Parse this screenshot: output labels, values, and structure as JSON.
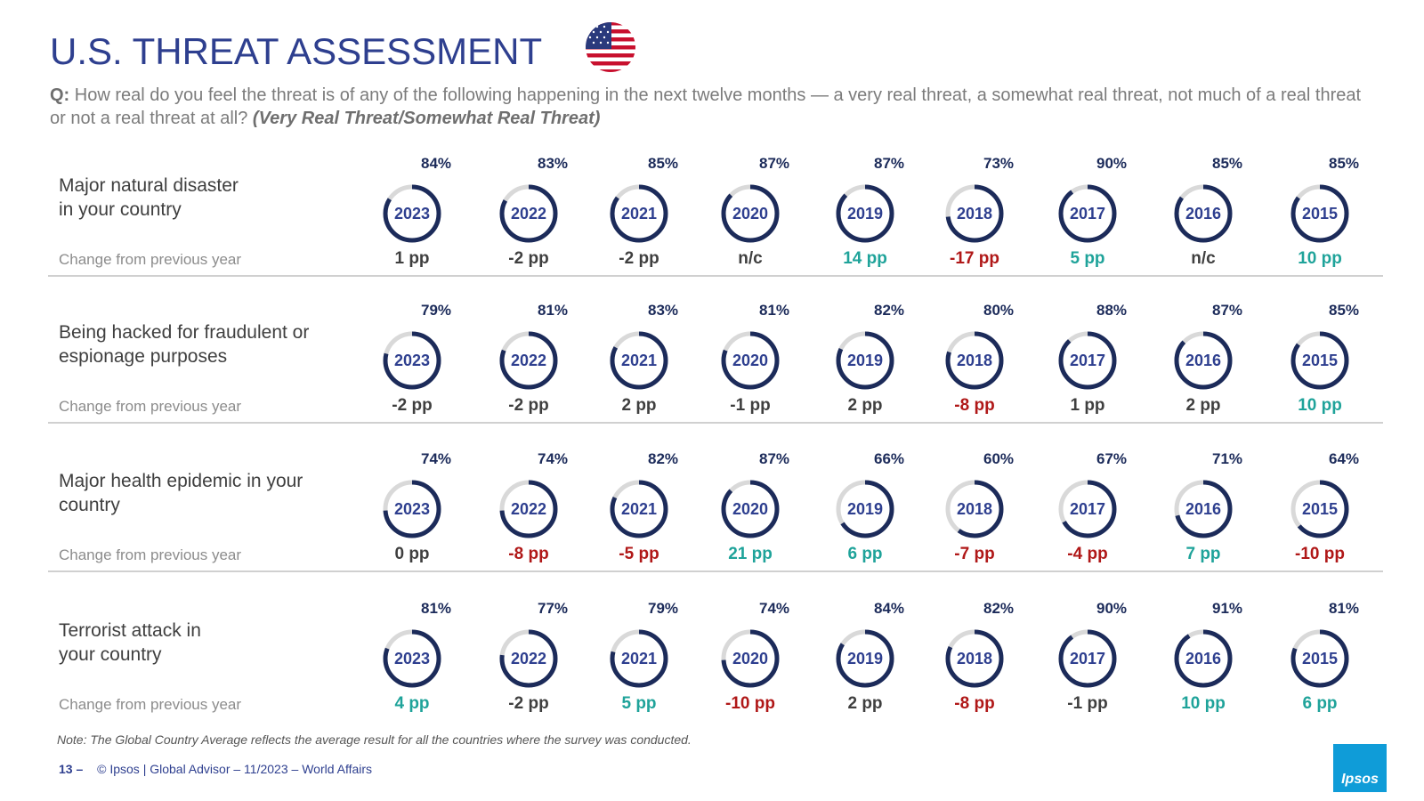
{
  "title": "U.S. THREAT ASSESSMENT",
  "flag_icon": "us-flag-icon",
  "question": {
    "label": "Q:",
    "text": "How real do you feel the threat is of any of the following happening in the next twelve months — a very real threat, a somewhat real threat, not much of a real threat or not a real threat at all?",
    "note": "(Very Real Threat/Somewhat Real Threat)"
  },
  "change_label": "Change from previous year",
  "colors": {
    "title": "#2e3f8f",
    "ring": "#1c2b5a",
    "ring_track": "#d9d9d9",
    "positive": "#1fa39a",
    "negative": "#b01818",
    "neutral": "#3f3f3f"
  },
  "chart_data": {
    "type": "donut-grid",
    "title": "U.S. THREAT ASSESSMENT",
    "years": [
      "2023",
      "2022",
      "2021",
      "2020",
      "2019",
      "2018",
      "2017",
      "2016",
      "2015"
    ],
    "series": [
      {
        "name": "Major natural disaster in your country",
        "label_lines": [
          "Major natural disaster",
          "in your country"
        ],
        "values": [
          84,
          83,
          85,
          87,
          87,
          73,
          90,
          85,
          85
        ],
        "changes": [
          "1 pp",
          "-2 pp",
          "-2 pp",
          "n/c",
          "14 pp",
          "-17 pp",
          "5 pp",
          "n/c",
          "10 pp"
        ],
        "change_tone": [
          "neu",
          "neu",
          "neu",
          "neu",
          "pos",
          "neg",
          "pos",
          "neu",
          "pos"
        ]
      },
      {
        "name": "Being hacked for fraudulent or espionage purposes",
        "label_lines": [
          "Being hacked for fraudulent or",
          "espionage purposes"
        ],
        "values": [
          79,
          81,
          83,
          81,
          82,
          80,
          88,
          87,
          85
        ],
        "changes": [
          "-2 pp",
          "-2 pp",
          "2 pp",
          "-1 pp",
          "2 pp",
          "-8 pp",
          "1 pp",
          "2 pp",
          "10 pp"
        ],
        "change_tone": [
          "neu",
          "neu",
          "neu",
          "neu",
          "neu",
          "neg",
          "neu",
          "neu",
          "pos"
        ]
      },
      {
        "name": "Major health epidemic in your country",
        "label_lines": [
          "Major health epidemic in your",
          "country"
        ],
        "values": [
          74,
          74,
          82,
          87,
          66,
          60,
          67,
          71,
          64
        ],
        "changes": [
          "0 pp",
          "-8 pp",
          "-5 pp",
          "21 pp",
          "6 pp",
          "-7 pp",
          "-4 pp",
          "7 pp",
          "-10 pp"
        ],
        "change_tone": [
          "neu",
          "neg",
          "neg",
          "pos",
          "pos",
          "neg",
          "neg",
          "pos",
          "neg"
        ]
      },
      {
        "name": "Terrorist attack in your country",
        "label_lines": [
          "Terrorist attack in",
          "your country"
        ],
        "values": [
          81,
          77,
          79,
          74,
          84,
          82,
          90,
          91,
          81
        ],
        "changes": [
          "4 pp",
          "-2 pp",
          "5 pp",
          "-10 pp",
          "2 pp",
          "-8 pp",
          "-1 pp",
          "10 pp",
          "6 pp"
        ],
        "change_tone": [
          "pos",
          "neu",
          "pos",
          "neg",
          "neu",
          "neg",
          "neu",
          "pos",
          "pos"
        ]
      }
    ]
  },
  "note": "Note: The Global Country Average reflects the average result for all the countries where the survey was conducted.",
  "footer": {
    "page": "13 –",
    "text": "© Ipsos | Global Advisor – 11/2023 – World Affairs"
  },
  "logo_text": "Ipsos"
}
